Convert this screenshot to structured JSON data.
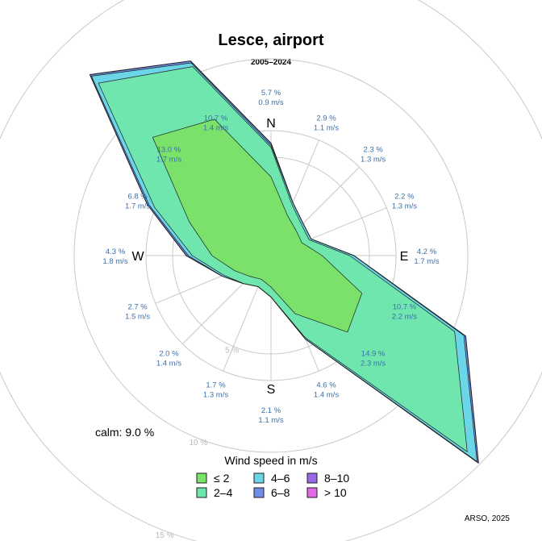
{
  "chart_data": {
    "type": "wind-rose",
    "title": "Lesce, airport",
    "subtitle": "2005–2024",
    "calm_label": "calm: 9.0 %",
    "credit": "ARSO, 2025",
    "legend_title": "Wind speed in m/s",
    "rings": [
      {
        "value": 5,
        "label": "5 %"
      },
      {
        "value": 10,
        "label": "10 %"
      },
      {
        "value": 15,
        "label": "15 %"
      }
    ],
    "compass_labels": [
      {
        "angle": 0,
        "text": "N"
      },
      {
        "angle": 90,
        "text": "E"
      },
      {
        "angle": 180,
        "text": "S"
      },
      {
        "angle": 270,
        "text": "W"
      }
    ],
    "speed_classes": [
      {
        "label": "≤ 2",
        "color": "#7ae26a"
      },
      {
        "label": "2–4",
        "color": "#6fe6ae"
      },
      {
        "label": "4–6",
        "color": "#6ad6e8"
      },
      {
        "label": "6–8",
        "color": "#6f8fe6"
      },
      {
        "label": "8–10",
        "color": "#9a6ae6"
      },
      {
        "label": "> 10",
        "color": "#e06ae6"
      }
    ],
    "directions": [
      {
        "angle": 0,
        "freq_label": "5.7 %",
        "speed_label": "0.9 m/s",
        "cumulative": [
          4.0,
          5.5,
          5.6,
          5.7,
          5.7,
          5.7
        ]
      },
      {
        "angle": 22.5,
        "freq_label": "2.9 %",
        "speed_label": "1.1 m/s",
        "cumulative": [
          2.2,
          2.8,
          2.9,
          2.9,
          2.9,
          2.9
        ]
      },
      {
        "angle": 45,
        "freq_label": "2.3 %",
        "speed_label": "1.3 m/s",
        "cumulative": [
          1.8,
          2.2,
          2.3,
          2.3,
          2.3,
          2.3
        ]
      },
      {
        "angle": 67.5,
        "freq_label": "2.2 %",
        "speed_label": "1.3 m/s",
        "cumulative": [
          1.7,
          2.1,
          2.2,
          2.2,
          2.2,
          2.2
        ]
      },
      {
        "angle": 90,
        "freq_label": "4.2 %",
        "speed_label": "1.7 m/s",
        "cumulative": [
          2.6,
          4.0,
          4.2,
          4.2,
          4.2,
          4.2
        ]
      },
      {
        "angle": 112.5,
        "freq_label": "10.7 %",
        "speed_label": "2.2 m/s",
        "cumulative": [
          5.0,
          10.1,
          10.6,
          10.7,
          10.7,
          10.7
        ]
      },
      {
        "angle": 135,
        "freq_label": "14.9 %",
        "speed_label": "2.3 m/s",
        "cumulative": [
          5.5,
          14.1,
          14.8,
          14.9,
          14.9,
          14.9
        ]
      },
      {
        "angle": 157.5,
        "freq_label": "4.6 %",
        "speed_label": "1.4 m/s",
        "cumulative": [
          3.2,
          4.5,
          4.6,
          4.6,
          4.6,
          4.6
        ]
      },
      {
        "angle": 180,
        "freq_label": "2.1 %",
        "speed_label": "1.1 m/s",
        "cumulative": [
          1.6,
          2.1,
          2.1,
          2.1,
          2.1,
          2.1
        ]
      },
      {
        "angle": 202.5,
        "freq_label": "1.7 %",
        "speed_label": "1.3 m/s",
        "cumulative": [
          1.3,
          1.7,
          1.7,
          1.7,
          1.7,
          1.7
        ]
      },
      {
        "angle": 225,
        "freq_label": "2.0 %",
        "speed_label": "1.4 m/s",
        "cumulative": [
          1.5,
          2.0,
          2.0,
          2.0,
          2.0,
          2.0
        ]
      },
      {
        "angle": 247.5,
        "freq_label": "2.7 %",
        "speed_label": "1.5 m/s",
        "cumulative": [
          2.0,
          2.6,
          2.7,
          2.7,
          2.7,
          2.7
        ]
      },
      {
        "angle": 270,
        "freq_label": "4.3 %",
        "speed_label": "1.8 m/s",
        "cumulative": [
          3.0,
          4.0,
          4.2,
          4.3,
          4.3,
          4.3
        ]
      },
      {
        "angle": 292.5,
        "freq_label": "6.8 %",
        "speed_label": "1.7 m/s",
        "cumulative": [
          4.5,
          6.4,
          6.7,
          6.8,
          6.8,
          6.8
        ]
      },
      {
        "angle": 315,
        "freq_label": "13.0 %",
        "speed_label": "1.7 m/s",
        "cumulative": [
          8.5,
          12.4,
          12.9,
          13.0,
          13.0,
          13.0
        ]
      },
      {
        "angle": 337.5,
        "freq_label": "10.7 %",
        "speed_label": "1.4 m/s",
        "cumulative": [
          7.5,
          10.4,
          10.6,
          10.7,
          10.7,
          10.7
        ]
      }
    ]
  }
}
